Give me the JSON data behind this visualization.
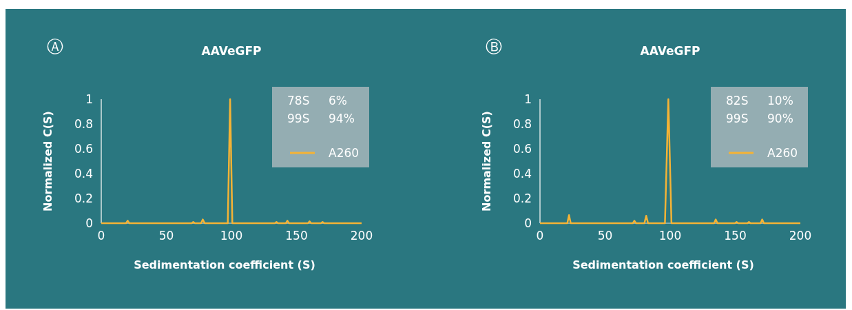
{
  "chart_data": [
    {
      "type": "line",
      "title": "AAVeGFP",
      "xlabel": "Sedimentation coefficient (S)",
      "ylabel": "Normalized C(S)",
      "annotations": [
        "Ⓐ",
        "78S",
        "6%",
        "99S",
        "94%"
      ],
      "xlim": [
        0,
        200
      ],
      "ylim": [
        0,
        1
      ],
      "xticks": [
        0,
        50,
        100,
        150,
        200
      ],
      "yticks": [
        0,
        0.2,
        0.4,
        0.6,
        0.8,
        1
      ],
      "legend": "top right",
      "grid": false,
      "marker": "none",
      "line_style": "solid",
      "series": [
        {
          "name": "A260",
          "color": "#f5b335",
          "x": [
            0,
            19,
            20.3,
            21.6,
            69.5,
            70.7,
            72,
            76.7,
            78,
            79.5,
            97.2,
            99,
            100.7,
            133.4,
            134.6,
            135.8,
            141.8,
            143,
            144.3,
            158.8,
            160,
            161.3,
            168.8,
            170,
            171.3,
            200
          ],
          "values": [
            0,
            0,
            0.02,
            0,
            0,
            0.01,
            0,
            0,
            0.03,
            0,
            0,
            1,
            0,
            0,
            0.01,
            0,
            0,
            0.02,
            0,
            0,
            0.015,
            0,
            0,
            0.01,
            0,
            0
          ]
        }
      ]
    },
    {
      "type": "line",
      "title": "AAVeGFP",
      "xlabel": "Sedimentation coefficient (S)",
      "ylabel": "Normalized C(S)",
      "annotations": [
        "Ⓑ",
        "82S",
        "10%",
        "99S",
        "90%"
      ],
      "xlim": [
        0,
        200
      ],
      "ylim": [
        0,
        1
      ],
      "xticks": [
        0,
        50,
        100,
        150,
        200
      ],
      "yticks": [
        0,
        0.2,
        0.4,
        0.6,
        0.8,
        1
      ],
      "legend": "top right",
      "grid": false,
      "marker": "none",
      "line_style": "solid",
      "series": [
        {
          "name": "A260",
          "color": "#f5b335",
          "x": [
            0,
            21,
            22.3,
            23.6,
            71.3,
            72.5,
            73.8,
            80.2,
            81.6,
            83,
            96,
            98.6,
            101,
            133.8,
            135,
            136.3,
            149.8,
            151,
            152.3,
            159.4,
            160.5,
            161.7,
            169.5,
            170.7,
            172,
            200
          ],
          "values": [
            0,
            0,
            0.065,
            0,
            0,
            0.02,
            0,
            0,
            0.06,
            0,
            0,
            1,
            0,
            0,
            0.03,
            0,
            0,
            0.01,
            0,
            0,
            0.01,
            0,
            0,
            0.03,
            0,
            0
          ]
        }
      ]
    }
  ]
}
